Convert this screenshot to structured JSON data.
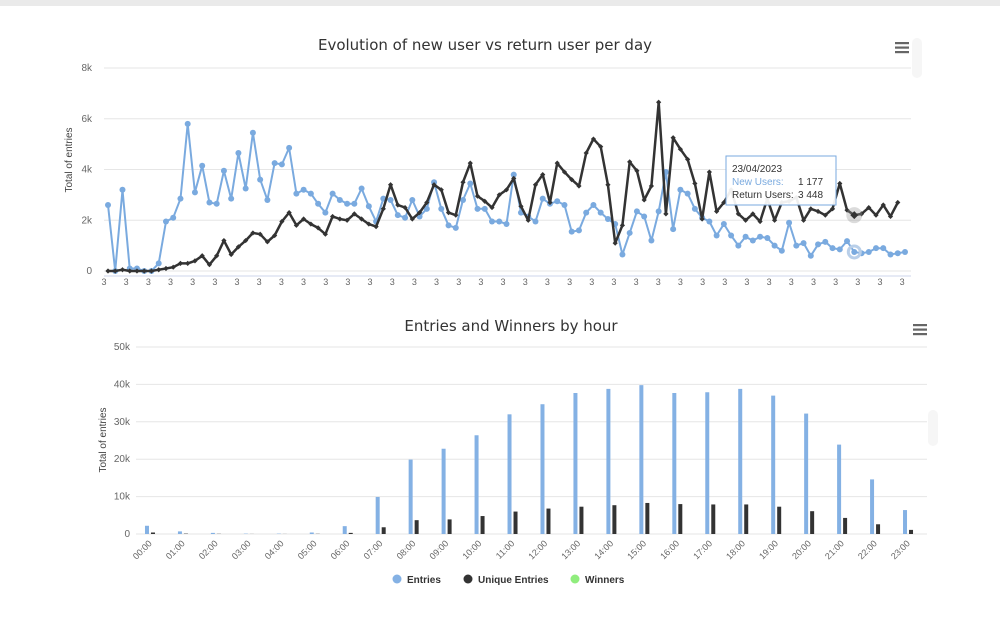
{
  "colors": {
    "new_users": "#7aaadf",
    "return_users": "#333333",
    "entries": "#84b1e4",
    "unique_entries": "#333333",
    "winners": "#90ed7d",
    "grid": "#e6e6e6",
    "tooltip_border": "#7aaadf"
  },
  "chart_data": [
    {
      "type": "line",
      "title": "Evolution of new user vs return user per day",
      "xlabel": "",
      "ylabel": "Total of entries",
      "ylim": [
        0,
        8000
      ],
      "yticks": [
        "0",
        "2k",
        "4k",
        "6k",
        "8k"
      ],
      "x_tick_label": "3",
      "series": [
        {
          "name": "New Users",
          "values": [
            2600,
            0,
            3200,
            100,
            100,
            0,
            0,
            300,
            1950,
            2100,
            2850,
            5800,
            3100,
            4150,
            2700,
            2650,
            3950,
            2850,
            4650,
            3250,
            5450,
            3600,
            2800,
            4250,
            4200,
            4850,
            3050,
            3200,
            3050,
            2650,
            2300,
            3050,
            2800,
            2650,
            2650,
            3250,
            2550,
            1950,
            2850,
            2800,
            2200,
            2100,
            2800,
            2150,
            2450,
            3500,
            2450,
            1800,
            1700,
            2800,
            3450,
            2450,
            2450,
            1950,
            1950,
            1850,
            3800,
            2300,
            2150,
            1950,
            2850,
            2650,
            2750,
            2600,
            1550,
            1600,
            2300,
            2600,
            2300,
            2050,
            1850,
            650,
            1500,
            2350,
            2150,
            1200,
            2350,
            3900,
            1650,
            3200,
            3050,
            2450,
            2100,
            1950,
            1400,
            1850,
            1400,
            1000,
            1350,
            1200,
            1350,
            1300,
            1000,
            800,
            1900,
            1000,
            1100,
            600,
            1050,
            1150,
            900,
            850,
            1177,
            750,
            700,
            750,
            900,
            900,
            650,
            700,
            750
          ]
        },
        {
          "name": "Return Users",
          "values": [
            0,
            0,
            50,
            0,
            0,
            0,
            0,
            50,
            100,
            150,
            300,
            300,
            400,
            600,
            250,
            600,
            1200,
            650,
            950,
            1200,
            1500,
            1450,
            1150,
            1400,
            1950,
            2300,
            1800,
            2050,
            1850,
            1700,
            1450,
            2150,
            2050,
            2000,
            2250,
            2050,
            1850,
            1750,
            2450,
            3400,
            2600,
            2500,
            2050,
            2300,
            2700,
            3400,
            3200,
            2300,
            2200,
            3500,
            4250,
            2950,
            2750,
            2500,
            3000,
            3200,
            3650,
            2550,
            2000,
            3400,
            3800,
            2700,
            4250,
            3900,
            3600,
            3350,
            4650,
            5200,
            4900,
            3400,
            1100,
            1800,
            4300,
            3950,
            2800,
            3350,
            6650,
            2250,
            5250,
            4800,
            4400,
            3450,
            2050,
            3900,
            2350,
            2700,
            3200,
            2250,
            2000,
            2250,
            1950,
            2850,
            2000,
            2700,
            2750,
            2900,
            2000,
            2450,
            2350,
            2200,
            2450,
            3448,
            2400,
            2200,
            2250,
            2500,
            2200,
            2600,
            2150,
            2700
          ]
        }
      ],
      "tooltip": {
        "date": "23/04/2023",
        "new_users_label": "New Users:",
        "new_users_value": "1 177",
        "return_users_label": "Return Users:",
        "return_users_value": "3 448"
      }
    },
    {
      "type": "bar",
      "title": "Entries and Winners by hour",
      "xlabel": "",
      "ylabel": "Total of entries",
      "ylim": [
        0,
        50000
      ],
      "yticks": [
        "0",
        "10k",
        "20k",
        "30k",
        "40k",
        "50k"
      ],
      "categories": [
        "00:00",
        "01:00",
        "02:00",
        "03:00",
        "04:00",
        "05:00",
        "06:00",
        "07:00",
        "08:00",
        "09:00",
        "10:00",
        "11:00",
        "12:00",
        "13:00",
        "14:00",
        "15:00",
        "16:00",
        "17:00",
        "18:00",
        "19:00",
        "20:00",
        "21:00",
        "22:00",
        "23:00"
      ],
      "series": [
        {
          "name": "Entries",
          "values": [
            2200,
            700,
            300,
            100,
            100,
            400,
            2100,
            9900,
            19900,
            22800,
            26400,
            32000,
            34700,
            37700,
            38800,
            39800,
            37700,
            37900,
            38800,
            37000,
            32200,
            23900,
            14600,
            6400
          ]
        },
        {
          "name": "Unique Entries",
          "values": [
            400,
            100,
            50,
            20,
            20,
            50,
            300,
            1800,
            3700,
            3900,
            4800,
            6000,
            6800,
            7300,
            7700,
            8300,
            8000,
            7900,
            7900,
            7300,
            6100,
            4300,
            2600,
            1100
          ]
        },
        {
          "name": "Winners",
          "values": [
            0,
            0,
            0,
            0,
            0,
            0,
            0,
            0,
            0,
            0,
            0,
            0,
            0,
            0,
            0,
            0,
            0,
            0,
            0,
            0,
            0,
            0,
            0,
            0
          ]
        }
      ],
      "legend": [
        "Entries",
        "Unique Entries",
        "Winners"
      ]
    }
  ]
}
